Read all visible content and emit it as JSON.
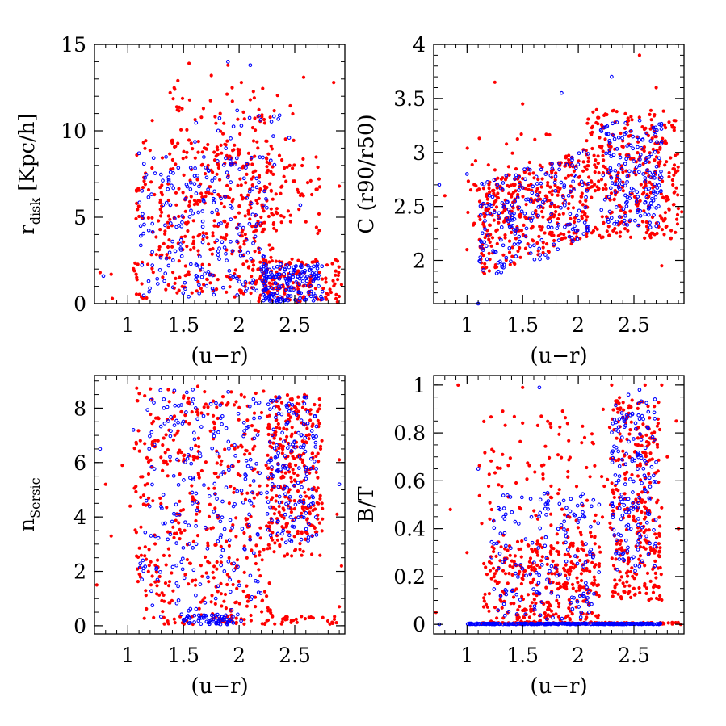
{
  "figure": {
    "description_colors": {
      "series_a": "#ff0000",
      "series_b": "#0000ff"
    }
  },
  "chart_data": [
    {
      "type": "scatter",
      "id": "rdisk",
      "xlabel": "(u−r)",
      "ylabel": "r",
      "ylabel_sub": "disk",
      "ylabel_suffix": " [Kpc/h]",
      "xlim": [
        0.7,
        2.95
      ],
      "ylim": [
        0,
        15
      ],
      "xticks": [
        {
          "v": 1,
          "label": "1"
        },
        {
          "v": 1.5,
          "label": "1.5"
        },
        {
          "v": 2,
          "label": "2"
        },
        {
          "v": 2.5,
          "label": "2.5"
        }
      ],
      "yticks": [
        {
          "v": 0,
          "label": "0"
        },
        {
          "v": 5,
          "label": "5"
        },
        {
          "v": 10,
          "label": "10"
        },
        {
          "v": 15,
          "label": "15"
        }
      ],
      "minor_x": 0.1,
      "minor_y": 1,
      "series": [
        {
          "name": "red",
          "color": "#ff0000",
          "marker": "dot",
          "seed": 11,
          "points": [
            [
              0.75,
              1.8
            ],
            [
              0.86,
              0.3
            ],
            [
              0.85,
              1.7
            ],
            [
              1.08,
              8.6
            ],
            [
              1.22,
              10.6
            ],
            [
              1.38,
              12.2
            ],
            [
              1.45,
              12.9
            ],
            [
              1.55,
              13.9
            ],
            [
              1.75,
              13.2
            ],
            [
              1.83,
              11.0
            ],
            [
              1.9,
              13.8
            ],
            [
              2.02,
              12.8
            ],
            [
              2.1,
              11.8
            ],
            [
              2.25,
              9.4
            ],
            [
              2.58,
              13.1
            ],
            [
              2.85,
              12.8
            ],
            [
              2.9,
              6.8
            ],
            [
              2.92,
              1.1
            ]
          ],
          "clusters": [
            {
              "n": 380,
              "x": [
                1.05,
                2.3
              ],
              "y": [
                0.3,
                9.5
              ],
              "shape": "box"
            },
            {
              "n": 90,
              "x": [
                2.0,
                2.75
              ],
              "y": [
                4.0,
                8.5
              ],
              "shape": "box"
            },
            {
              "n": 140,
              "x": [
                2.15,
                2.9
              ],
              "y": [
                0.1,
                2.6
              ],
              "shape": "box"
            },
            {
              "n": 60,
              "x": [
                1.4,
                2.5
              ],
              "y": [
                8.5,
                12.5
              ],
              "shape": "box"
            }
          ]
        },
        {
          "name": "blue",
          "color": "#0000ff",
          "marker": "ring",
          "seed": 23,
          "points": [
            [
              0.78,
              1.6
            ],
            [
              1.1,
              8.7
            ],
            [
              1.9,
              14.0
            ],
            [
              2.02,
              10.3
            ],
            [
              2.1,
              13.8
            ],
            [
              2.45,
              9.6
            ],
            [
              2.55,
              5.7
            ]
          ],
          "clusters": [
            {
              "n": 170,
              "x": [
                2.2,
                2.75
              ],
              "y": [
                0.1,
                2.3
              ],
              "shape": "box"
            },
            {
              "n": 210,
              "x": [
                1.1,
                2.25
              ],
              "y": [
                0.4,
                8.5
              ],
              "shape": "box"
            },
            {
              "n": 25,
              "x": [
                1.6,
                2.4
              ],
              "y": [
                8.0,
                11.5
              ],
              "shape": "box"
            }
          ]
        }
      ]
    },
    {
      "type": "scatter",
      "id": "concentration",
      "xlabel": "(u−r)",
      "ylabel": "C (r90/r50)",
      "xlim": [
        0.7,
        2.95
      ],
      "ylim": [
        1.6,
        4.0
      ],
      "xticks": [
        {
          "v": 1,
          "label": "1"
        },
        {
          "v": 1.5,
          "label": "1.5"
        },
        {
          "v": 2,
          "label": "2"
        },
        {
          "v": 2.5,
          "label": "2.5"
        }
      ],
      "yticks": [
        {
          "v": 2,
          "label": "2"
        },
        {
          "v": 2.5,
          "label": "2.5"
        },
        {
          "v": 3,
          "label": "3"
        },
        {
          "v": 3.5,
          "label": "3.5"
        },
        {
          "v": 4,
          "label": "4"
        }
      ],
      "minor_x": 0.1,
      "minor_y": 0.1,
      "series": [
        {
          "name": "red",
          "color": "#ff0000",
          "marker": "dot",
          "seed": 37,
          "points": [
            [
              0.8,
              2.6
            ],
            [
              1.0,
              2.1
            ],
            [
              1.25,
              3.65
            ],
            [
              1.5,
              3.45
            ],
            [
              2.55,
              3.9
            ],
            [
              2.7,
              3.6
            ],
            [
              2.85,
              2.7
            ],
            [
              2.93,
              2.45
            ],
            [
              2.75,
              1.95
            ]
          ],
          "clusters": [
            {
              "n": 330,
              "x": [
                1.1,
                2.1
              ],
              "y": [
                1.85,
                2.7
              ],
              "shape": "trend",
              "slope": 0.35
            },
            {
              "n": 330,
              "x": [
                2.05,
                2.9
              ],
              "y": [
                2.2,
                3.4
              ],
              "shape": "box"
            },
            {
              "n": 60,
              "x": [
                1.0,
                1.9
              ],
              "y": [
                2.3,
                3.2
              ],
              "shape": "box"
            }
          ]
        },
        {
          "name": "blue",
          "color": "#0000ff",
          "marker": "ring",
          "seed": 41,
          "points": [
            [
              0.75,
              2.7
            ],
            [
              1.1,
              1.6
            ],
            [
              1.0,
              2.8
            ],
            [
              2.3,
              3.7
            ],
            [
              1.85,
              3.55
            ]
          ],
          "clusters": [
            {
              "n": 200,
              "x": [
                1.1,
                2.1
              ],
              "y": [
                1.8,
                2.7
              ],
              "shape": "trend",
              "slope": 0.35
            },
            {
              "n": 170,
              "x": [
                2.2,
                2.75
              ],
              "y": [
                2.3,
                3.3
              ],
              "shape": "box"
            }
          ]
        }
      ]
    },
    {
      "type": "scatter",
      "id": "sersic",
      "xlabel": "(u−r)",
      "ylabel": "n",
      "ylabel_sub": "Sersic",
      "xlim": [
        0.7,
        2.95
      ],
      "ylim": [
        -0.3,
        9.2
      ],
      "xticks": [
        {
          "v": 1,
          "label": "1"
        },
        {
          "v": 1.5,
          "label": "1.5"
        },
        {
          "v": 2,
          "label": "2"
        },
        {
          "v": 2.5,
          "label": "2.5"
        }
      ],
      "yticks": [
        {
          "v": 0,
          "label": "0"
        },
        {
          "v": 2,
          "label": "2"
        },
        {
          "v": 4,
          "label": "4"
        },
        {
          "v": 6,
          "label": "6"
        },
        {
          "v": 8,
          "label": "8"
        }
      ],
      "minor_x": 0.1,
      "minor_y": 0.5,
      "series": [
        {
          "name": "red",
          "color": "#ff0000",
          "marker": "dot",
          "seed": 53,
          "points": [
            [
              0.72,
              1.5
            ],
            [
              0.85,
              3.3
            ],
            [
              0.8,
              5.2
            ],
            [
              1.02,
              4.4
            ],
            [
              0.95,
              5.9
            ],
            [
              2.9,
              0.7
            ],
            [
              2.92,
              2.2
            ],
            [
              2.88,
              4.1
            ],
            [
              2.9,
              6.1
            ]
          ],
          "clusters": [
            {
              "n": 430,
              "x": [
                1.05,
                2.3
              ],
              "y": [
                0.1,
                8.8
              ],
              "shape": "box"
            },
            {
              "n": 300,
              "x": [
                2.25,
                2.75
              ],
              "y": [
                2.5,
                8.5
              ],
              "shape": "box"
            },
            {
              "n": 60,
              "x": [
                1.3,
                2.9
              ],
              "y": [
                0.05,
                0.35
              ],
              "shape": "box"
            }
          ]
        },
        {
          "name": "blue",
          "color": "#0000ff",
          "marker": "ring",
          "seed": 61,
          "points": [
            [
              0.75,
              6.5
            ],
            [
              1.05,
              7.2
            ],
            [
              2.9,
              5.2
            ]
          ],
          "clusters": [
            {
              "n": 230,
              "x": [
                1.1,
                2.2
              ],
              "y": [
                0.1,
                8.8
              ],
              "shape": "box"
            },
            {
              "n": 150,
              "x": [
                2.25,
                2.7
              ],
              "y": [
                3.0,
                8.5
              ],
              "shape": "box"
            },
            {
              "n": 60,
              "x": [
                1.5,
                1.95
              ],
              "y": [
                0.05,
                0.4
              ],
              "shape": "box"
            }
          ]
        }
      ]
    },
    {
      "type": "scatter",
      "id": "bulge-to-total",
      "xlabel": "(u−r)",
      "ylabel": "B/T",
      "xlim": [
        0.7,
        2.95
      ],
      "ylim": [
        -0.04,
        1.04
      ],
      "xticks": [
        {
          "v": 1,
          "label": "1"
        },
        {
          "v": 1.5,
          "label": "1.5"
        },
        {
          "v": 2,
          "label": "2"
        },
        {
          "v": 2.5,
          "label": "2.5"
        }
      ],
      "yticks": [
        {
          "v": 0,
          "label": "0"
        },
        {
          "v": 0.2,
          "label": "0.2"
        },
        {
          "v": 0.4,
          "label": "0.4"
        },
        {
          "v": 0.6,
          "label": "0.6"
        },
        {
          "v": 0.8,
          "label": "0.8"
        },
        {
          "v": 1,
          "label": "1"
        }
      ],
      "minor_x": 0.1,
      "minor_y": 0.05,
      "series": [
        {
          "name": "red",
          "color": "#ff0000",
          "marker": "dot",
          "seed": 71,
          "points": [
            [
              0.72,
              0.05
            ],
            [
              0.85,
              0.48
            ],
            [
              0.92,
              1.0
            ],
            [
              1.0,
              0.3
            ],
            [
              1.5,
              0.99
            ],
            [
              2.3,
              1.0
            ],
            [
              2.6,
              1.0
            ],
            [
              2.75,
              1.0
            ],
            [
              2.8,
              0.7
            ],
            [
              2.9,
              0.4
            ],
            [
              2.92,
              0.0
            ],
            [
              2.88,
              0.85
            ]
          ],
          "clusters": [
            {
              "n": 330,
              "x": [
                1.15,
                2.2
              ],
              "y": [
                0.0,
                0.35
              ],
              "shape": "box"
            },
            {
              "n": 120,
              "x": [
                1.1,
                2.3
              ],
              "y": [
                0.3,
                0.9
              ],
              "shape": "box"
            },
            {
              "n": 300,
              "x": [
                2.3,
                2.75
              ],
              "y": [
                0.1,
                0.95
              ],
              "shape": "box"
            },
            {
              "n": 90,
              "x": [
                1.1,
                2.9
              ],
              "y": [
                0.0,
                0.008
              ],
              "shape": "box"
            }
          ]
        },
        {
          "name": "blue",
          "color": "#0000ff",
          "marker": "ring",
          "seed": 83,
          "points": [
            [
              0.75,
              0.0
            ],
            [
              1.1,
              0.65
            ],
            [
              1.65,
              0.99
            ],
            [
              2.45,
              0.96
            ],
            [
              2.55,
              0.98
            ]
          ],
          "clusters": [
            {
              "n": 320,
              "x": [
                1.0,
                2.75
              ],
              "y": [
                0.0,
                0.004
              ],
              "shape": "box"
            },
            {
              "n": 160,
              "x": [
                1.2,
                2.2
              ],
              "y": [
                0.02,
                0.55
              ],
              "shape": "box"
            },
            {
              "n": 160,
              "x": [
                2.3,
                2.7
              ],
              "y": [
                0.2,
                0.95
              ],
              "shape": "box"
            }
          ]
        }
      ]
    }
  ]
}
